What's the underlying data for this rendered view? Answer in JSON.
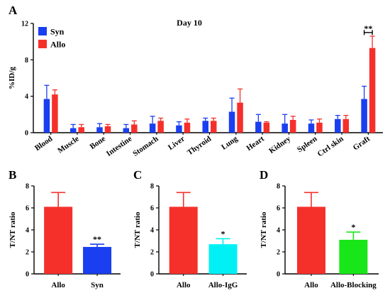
{
  "colors": {
    "syn": "#1a3ff0",
    "allo": "#f5302b",
    "allo_igg": "#00f0f5",
    "allo_blocking": "#19e619",
    "axis": "#000000"
  },
  "chart_data": [
    {
      "panel": "A",
      "type": "bar",
      "title": "Day 10",
      "ylabel": "%ID/g",
      "xlabel": "",
      "ylim": [
        0,
        12
      ],
      "yticks": [
        0,
        4,
        8,
        12
      ],
      "legend": {
        "placement": "top-left"
      },
      "categories": [
        "Blood",
        "Muscle",
        "Bone",
        "Intestine",
        "Stomach",
        "Liver",
        "Thyroid",
        "Lung",
        "Heart",
        "Kidney",
        "Spleen",
        "Ctrl skin",
        "Graft"
      ],
      "series": [
        {
          "name": "Syn",
          "color_key": "syn",
          "values": [
            3.7,
            0.5,
            0.6,
            0.5,
            1.0,
            0.8,
            1.3,
            2.3,
            1.2,
            1.0,
            1.0,
            1.5,
            3.7
          ],
          "errors": [
            1.5,
            0.4,
            0.4,
            0.4,
            0.8,
            0.4,
            0.3,
            1.5,
            0.8,
            1.0,
            0.4,
            0.4,
            1.4
          ]
        },
        {
          "name": "Allo",
          "color_key": "allo",
          "values": [
            4.2,
            0.6,
            0.7,
            0.9,
            1.3,
            1.1,
            1.3,
            3.3,
            1.1,
            1.4,
            1.1,
            1.5,
            9.3
          ],
          "errors": [
            0.5,
            0.3,
            0.2,
            0.4,
            0.3,
            0.4,
            0.3,
            1.5,
            0.1,
            0.4,
            0.4,
            0.4,
            1.3
          ]
        }
      ],
      "annotations": [
        {
          "text": "**",
          "category": "Graft",
          "type": "bracket"
        }
      ]
    },
    {
      "panel": "B",
      "type": "bar",
      "ylabel": "T/NT ratio",
      "xlabel": "",
      "ylim": [
        0,
        8
      ],
      "yticks": [
        0,
        2,
        4,
        6,
        8
      ],
      "categories": [
        "Allo",
        "Syn"
      ],
      "color_keys": [
        "allo",
        "syn"
      ],
      "values": [
        6.1,
        2.45
      ],
      "errors": [
        1.3,
        0.25
      ],
      "annotations": [
        {
          "text": "**",
          "category": "Syn"
        }
      ]
    },
    {
      "panel": "C",
      "type": "bar",
      "ylabel": "T/NT ratio",
      "xlabel": "",
      "ylim": [
        0,
        8
      ],
      "yticks": [
        0,
        2,
        4,
        6,
        8
      ],
      "categories": [
        "Allo",
        "Allo-IgG"
      ],
      "color_keys": [
        "allo",
        "allo_igg"
      ],
      "values": [
        6.1,
        2.7
      ],
      "errors": [
        1.3,
        0.5
      ],
      "annotations": [
        {
          "text": "*",
          "category": "Allo-IgG"
        }
      ]
    },
    {
      "panel": "D",
      "type": "bar",
      "ylabel": "T/NT ratio",
      "xlabel": "",
      "ylim": [
        0,
        8
      ],
      "yticks": [
        0,
        2,
        4,
        6,
        8
      ],
      "categories": [
        "Allo",
        "Allo-Blocking"
      ],
      "color_keys": [
        "allo",
        "allo_blocking"
      ],
      "values": [
        6.1,
        3.1
      ],
      "errors": [
        1.3,
        0.7
      ],
      "annotations": [
        {
          "text": "*",
          "category": "Allo-Blocking"
        }
      ]
    }
  ]
}
